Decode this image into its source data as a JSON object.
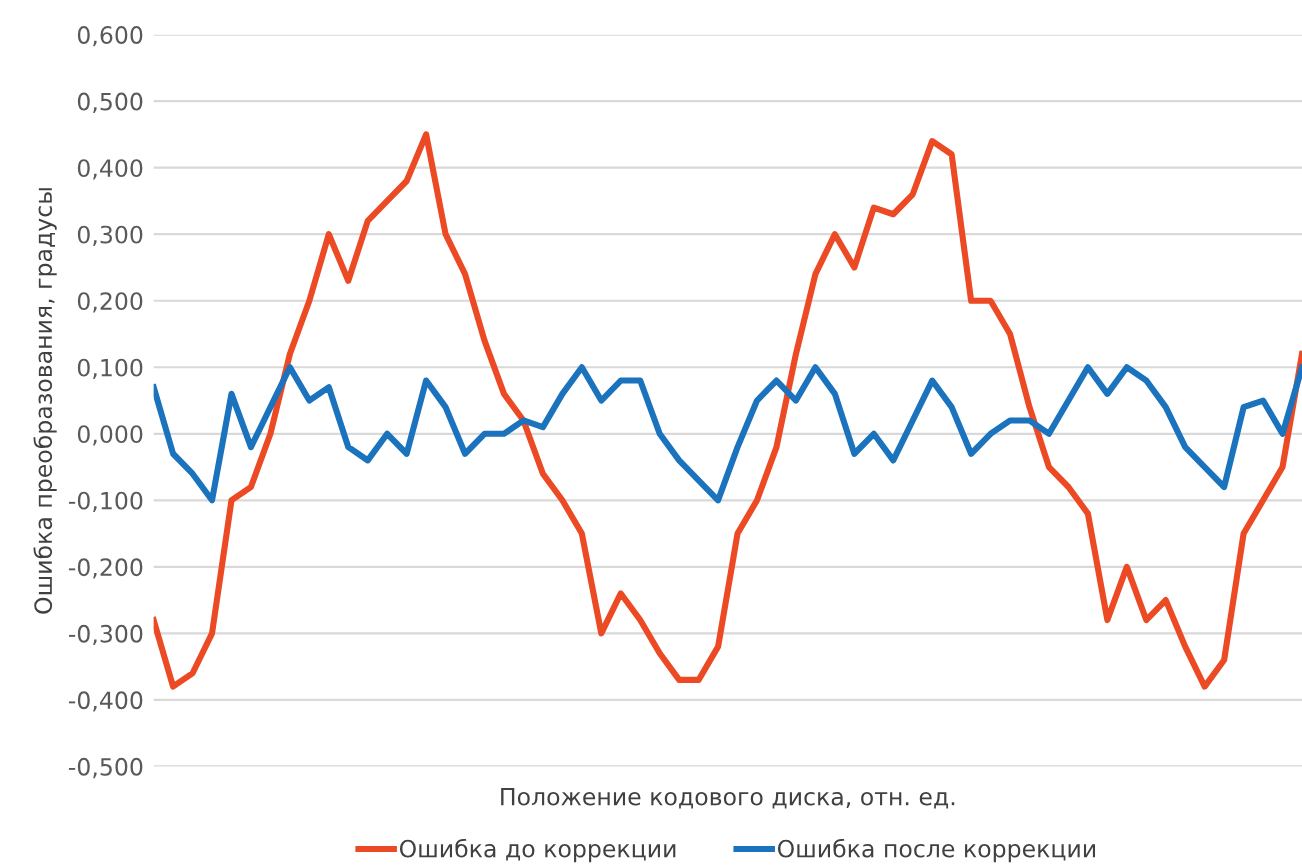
{
  "chart_data": {
    "type": "line",
    "xlabel": "Положение кодового диска, отн. ед.",
    "ylabel": "Ошибка преобразования, градусы",
    "categories": [
      null,
      null,
      null,
      null,
      null,
      null,
      null,
      null,
      null,
      null,
      null,
      null,
      null,
      null,
      null,
      null,
      null,
      null,
      null,
      null,
      null,
      null,
      null,
      null,
      null,
      null,
      null,
      null,
      null,
      null,
      null,
      null,
      null,
      null,
      null,
      null,
      null,
      null,
      null,
      null,
      null,
      null,
      null,
      null,
      null,
      null,
      null,
      null,
      null,
      null,
      null,
      null,
      null,
      null,
      null,
      null,
      null,
      null,
      null,
      null
    ],
    "series": [
      {
        "name": "Ошибка до коррекции",
        "color": "#ec4a24",
        "values": [
          -0.28,
          -0.38,
          -0.36,
          -0.3,
          -0.1,
          -0.08,
          0.0,
          0.12,
          0.2,
          0.3,
          0.23,
          0.32,
          0.35,
          0.38,
          0.45,
          0.3,
          0.24,
          0.14,
          0.06,
          0.02,
          -0.06,
          -0.1,
          -0.15,
          -0.3,
          -0.24,
          -0.28,
          -0.33,
          -0.37,
          -0.37,
          -0.32,
          -0.15,
          -0.1,
          -0.02,
          0.12,
          0.24,
          0.3,
          0.25,
          0.34,
          0.33,
          0.36,
          0.44,
          0.42,
          0.2,
          0.2,
          0.15,
          0.04,
          -0.05,
          -0.08,
          -0.12,
          -0.28,
          -0.2,
          -0.28,
          -0.25,
          -0.32,
          -0.38,
          -0.34,
          -0.15,
          -0.1,
          -0.05,
          0.12
        ]
      },
      {
        "name": "Ошибка после коррекции",
        "color": "#1b72bd",
        "values": [
          0.07,
          -0.03,
          -0.06,
          -0.1,
          0.06,
          -0.02,
          0.04,
          0.1,
          0.05,
          0.07,
          -0.02,
          -0.04,
          0.0,
          -0.03,
          0.08,
          0.04,
          -0.03,
          0.0,
          0.0,
          0.02,
          0.01,
          0.06,
          0.1,
          0.05,
          0.08,
          0.08,
          0.0,
          -0.04,
          -0.07,
          -0.1,
          -0.02,
          0.05,
          0.08,
          0.05,
          0.1,
          0.06,
          -0.03,
          0.0,
          -0.04,
          0.02,
          0.08,
          0.04,
          -0.03,
          0.0,
          0.02,
          0.02,
          0.0,
          0.05,
          0.1,
          0.06,
          0.1,
          0.08,
          0.04,
          -0.02,
          -0.05,
          -0.08,
          0.04,
          0.05,
          0.0,
          0.1
        ]
      }
    ],
    "ylim": [
      -0.5,
      0.6
    ],
    "yticks": [
      {
        "value": -0.5,
        "label": "-0,500"
      },
      {
        "value": -0.4,
        "label": "-0,400"
      },
      {
        "value": -0.3,
        "label": "-0,300"
      },
      {
        "value": -0.2,
        "label": "-0,200"
      },
      {
        "value": -0.1,
        "label": "-0,100"
      },
      {
        "value": 0.0,
        "label": "0,000"
      },
      {
        "value": 0.1,
        "label": "0,100"
      },
      {
        "value": 0.2,
        "label": "0,200"
      },
      {
        "value": 0.3,
        "label": "0,300"
      },
      {
        "value": 0.4,
        "label": "0,400"
      },
      {
        "value": 0.5,
        "label": "0,500"
      },
      {
        "value": 0.6,
        "label": "0,600"
      }
    ],
    "grid": "y",
    "legend": "bottom",
    "marker": "none",
    "line_style": "solid"
  }
}
